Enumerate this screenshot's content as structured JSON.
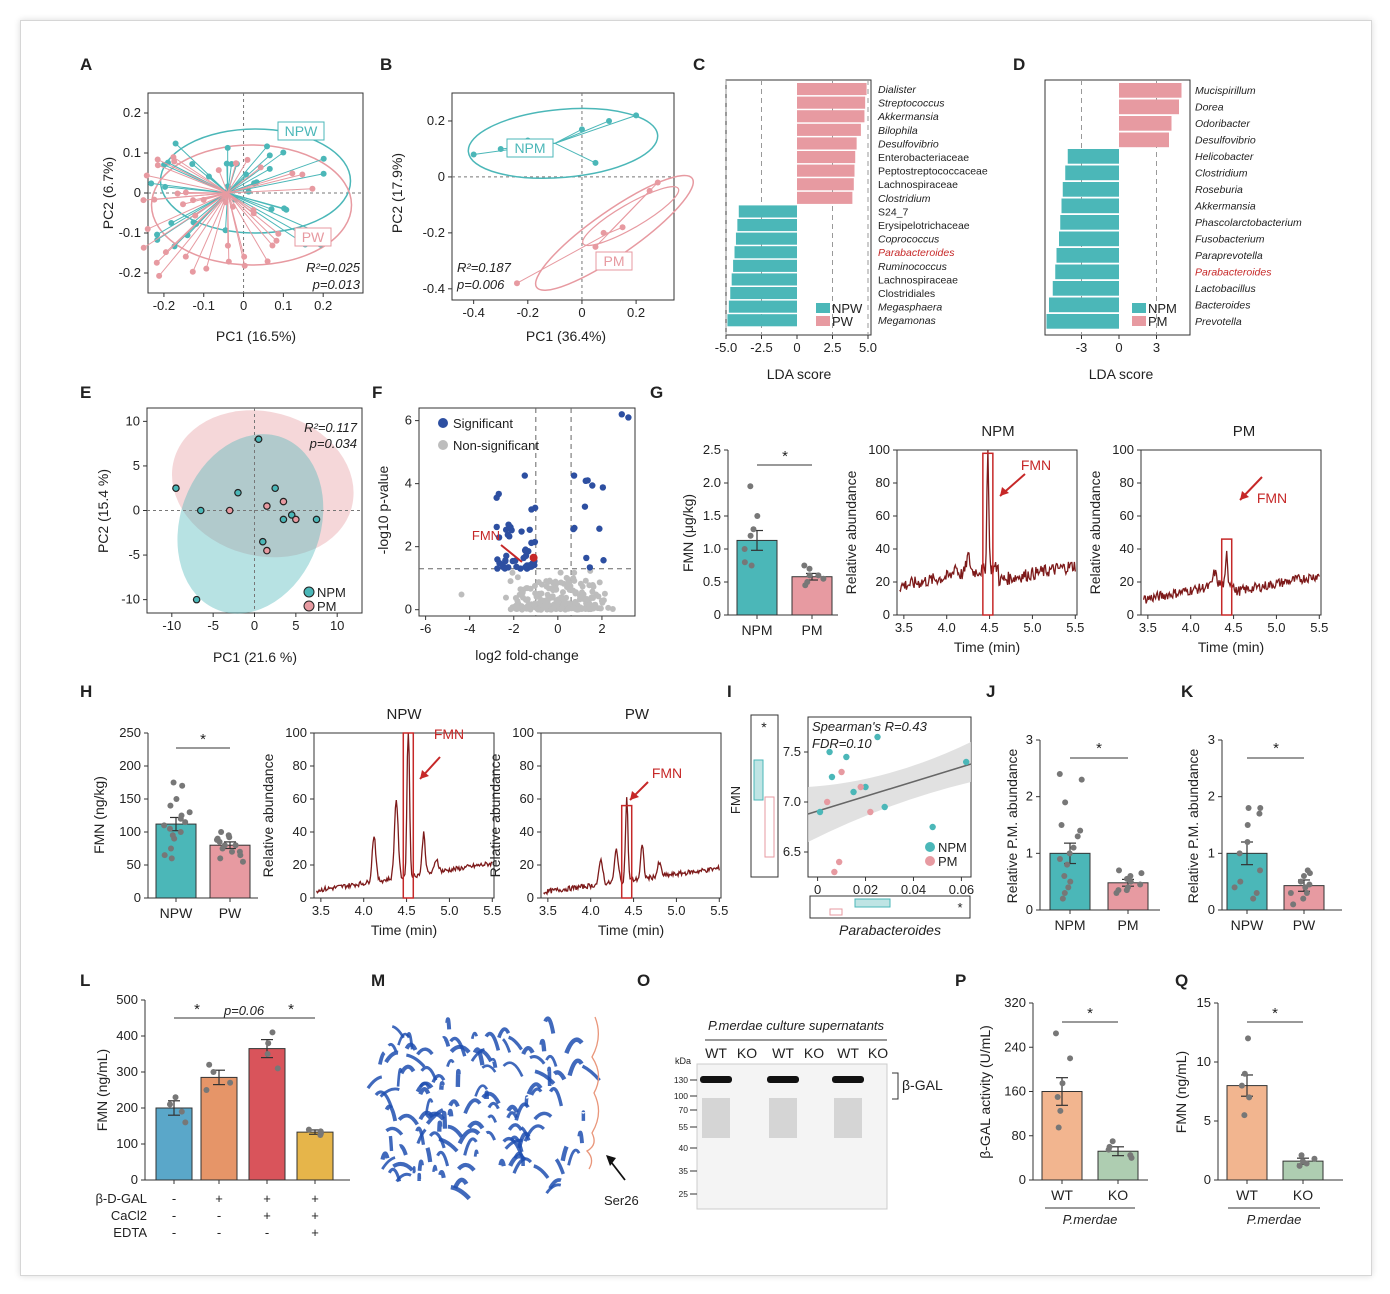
{
  "colors": {
    "teal": "#4bb7b8",
    "pink": "#e79aa1",
    "navy": "#2d4fa1",
    "grey": "#bdbdbd",
    "red": "#c62828",
    "darkred": "#7d1a1a",
    "blue": "#5aa7c9",
    "orange": "#e69568",
    "redbar": "#d9545b",
    "gold": "#e6b54a",
    "peach": "#f2b58f",
    "sage": "#aecdb1",
    "protein": "#1f4fb0",
    "salmon": "#e9967a"
  },
  "panels": [
    "A",
    "B",
    "C",
    "D",
    "E",
    "F",
    "G",
    "H",
    "I",
    "J",
    "K",
    "L",
    "M",
    "O",
    "P",
    "Q"
  ],
  "A": {
    "ylabel": "PC2 (6.7%)",
    "xlabel": "PC1 (16.5%)",
    "yticks": [
      "0.2",
      "0.1",
      "0",
      "-0.1",
      "-0.2"
    ],
    "xticks": [
      "-0.2",
      "-0.1",
      "0",
      "0.1",
      "0.2"
    ],
    "group1": "NPW",
    "group2": "PW",
    "stat1": "R²=0.025",
    "stat2": "p=0.013"
  },
  "B": {
    "ylabel": "PC2 (17.9%)",
    "xlabel": "PC1 (36.4%)",
    "yticks": [
      "0.2",
      "0",
      "-0.2",
      "-0.4"
    ],
    "xticks": [
      "-0.4",
      "-0.2",
      "0",
      "0.2"
    ],
    "group1": "NPM",
    "group2": "PM",
    "stat1": "R²=0.187",
    "stat2": "p=0.006"
  },
  "C": {
    "xlabel": "LDA score",
    "xticks": [
      "-5.0",
      "-2.5",
      "0",
      "2.5",
      "5.0"
    ],
    "legend": [
      "NPW",
      "PW"
    ],
    "taxa": [
      "Dialister",
      "Streptococcus",
      "Akkermansia",
      "Bilophila",
      "Desulfovibrio",
      "Enterobacteriaceae",
      "Peptostreptococcaceae",
      "Lachnospiraceae",
      "Clostridium",
      "S24_7",
      "Erysipelotrichaceae",
      "Coprococcus",
      "Parabacteroides",
      "Ruminococcus",
      "Lachnospiraceae",
      "Clostridiales",
      "Megasphaera",
      "Megamonas"
    ]
  },
  "D": {
    "xlabel": "LDA score",
    "xticks": [
      "-3",
      "0",
      "3"
    ],
    "legend": [
      "NPM",
      "PM"
    ],
    "taxa": [
      "Mucispirillum",
      "Dorea",
      "Odoribacter",
      "Desulfovibrio",
      "Helicobacter",
      "Clostridium",
      "Roseburia",
      "Akkermansia",
      "Phascolarctobacterium",
      "Fusobacterium",
      "Paraprevotella",
      "Parabacteroides",
      "Lactobacillus",
      "Bacteroides",
      "Prevotella"
    ]
  },
  "E": {
    "ylabel": "PC2 (15.4 %)",
    "xlabel": "PC1 (21.6 %)",
    "yticks": [
      "10",
      "5",
      "0",
      "-5",
      "-10"
    ],
    "xticks": [
      "-10",
      "-5",
      "0",
      "5",
      "10"
    ],
    "stat1": "R²=0.117",
    "stat2": "p=0.034",
    "legend": [
      "NPM",
      "PM"
    ]
  },
  "F": {
    "ylabel": "-log10 p-value",
    "xlabel": "log2 fold-change",
    "yticks": [
      "6",
      "4",
      "2",
      "0"
    ],
    "xticks": [
      "-6",
      "-4",
      "-2",
      "0",
      "2"
    ],
    "legend": [
      "Significant",
      "Non-significant"
    ],
    "label": "FMN"
  },
  "G": {
    "ylabel": "FMN (μg/kg)",
    "yticks": [
      "2.5",
      "2.0",
      "1.5",
      "1.0",
      "0.5",
      "0"
    ],
    "cats": [
      "NPM",
      "PM"
    ],
    "values": [
      1.13,
      0.58
    ],
    "sig": "*",
    "title1": "NPM",
    "title2": "PM",
    "rel": "Relative abundance",
    "time": "Time (min)",
    "label": "FMN",
    "yt2": [
      "100",
      "80",
      "60",
      "40",
      "20",
      "0"
    ],
    "xt2": [
      "3.5",
      "4.0",
      "4.5",
      "5.0",
      "5.5"
    ]
  },
  "H": {
    "ylabel": "FMN (ng/kg)",
    "yticks": [
      "250",
      "200",
      "150",
      "100",
      "50",
      "0"
    ],
    "cats": [
      "NPW",
      "PW"
    ],
    "values": [
      112,
      80
    ],
    "sig": "*",
    "title1": "NPW",
    "title2": "PW",
    "rel": "Relative abundance",
    "time": "Time (min)",
    "label": "FMN",
    "yt2": [
      "100",
      "80",
      "60",
      "40",
      "20",
      "0"
    ],
    "xt2": [
      "3.5",
      "4.0",
      "4.5",
      "5.0",
      "5.5"
    ]
  },
  "I": {
    "ylabel": "FMN",
    "xlabel": "Parabacteroides",
    "stat1": "Spearman's R=0.43",
    "stat2": "FDR=0.10",
    "yticks": [
      "7.5",
      "7.0",
      "6.5"
    ],
    "xticks": [
      "0",
      "0.02",
      "0.04",
      "0.06"
    ],
    "legend": [
      "NPM",
      "PM"
    ],
    "sig": "*"
  },
  "J": {
    "ylabel": "Relative P.M. abundance",
    "yticks": [
      "3",
      "2",
      "1",
      "0"
    ],
    "cats": [
      "NPM",
      "PM"
    ],
    "values": [
      1.0,
      0.48
    ],
    "sig": "*"
  },
  "K": {
    "ylabel": "Relative P.M. abundance",
    "yticks": [
      "3",
      "2",
      "1",
      "0"
    ],
    "cats": [
      "NPW",
      "PW"
    ],
    "values": [
      1.0,
      0.43
    ],
    "sig": "*"
  },
  "L": {
    "ylabel": "FMN (ng/mL)",
    "yticks": [
      "500",
      "400",
      "300",
      "200",
      "100",
      "0"
    ],
    "values": [
      200,
      285,
      365,
      133
    ],
    "sig": [
      "*",
      "p=0.06",
      "*"
    ],
    "rows": [
      {
        "name": "β-D-GAL",
        "v": [
          "-",
          "+",
          "+",
          "+"
        ]
      },
      {
        "name": "CaCl2",
        "v": [
          "-",
          "-",
          "+",
          "+"
        ]
      },
      {
        "name": "EDTA",
        "v": [
          "-",
          "-",
          "-",
          "+"
        ]
      }
    ]
  },
  "M": {
    "label": "Ser26"
  },
  "O": {
    "title": "P.merdae culture supernatants",
    "kda": "kDa",
    "lanes": [
      "WT",
      "KO",
      "WT",
      "KO",
      "WT",
      "KO"
    ],
    "markers": [
      "130",
      "100",
      "70",
      "55",
      "40",
      "35",
      "25"
    ],
    "band": "β-GAL"
  },
  "P": {
    "ylabel": "β-GAL activity (U/mL)",
    "yticks": [
      "320",
      "240",
      "160",
      "80",
      "0"
    ],
    "cats": [
      "WT",
      "KO"
    ],
    "values": [
      160,
      52
    ],
    "sig": "*",
    "group": "P.merdae"
  },
  "Q": {
    "ylabel": "FMN (ng/mL)",
    "yticks": [
      "15",
      "10",
      "5",
      "0"
    ],
    "cats": [
      "WT",
      "KO"
    ],
    "values": [
      8.0,
      1.6
    ],
    "sig": "*",
    "group": "P.merdae"
  }
}
